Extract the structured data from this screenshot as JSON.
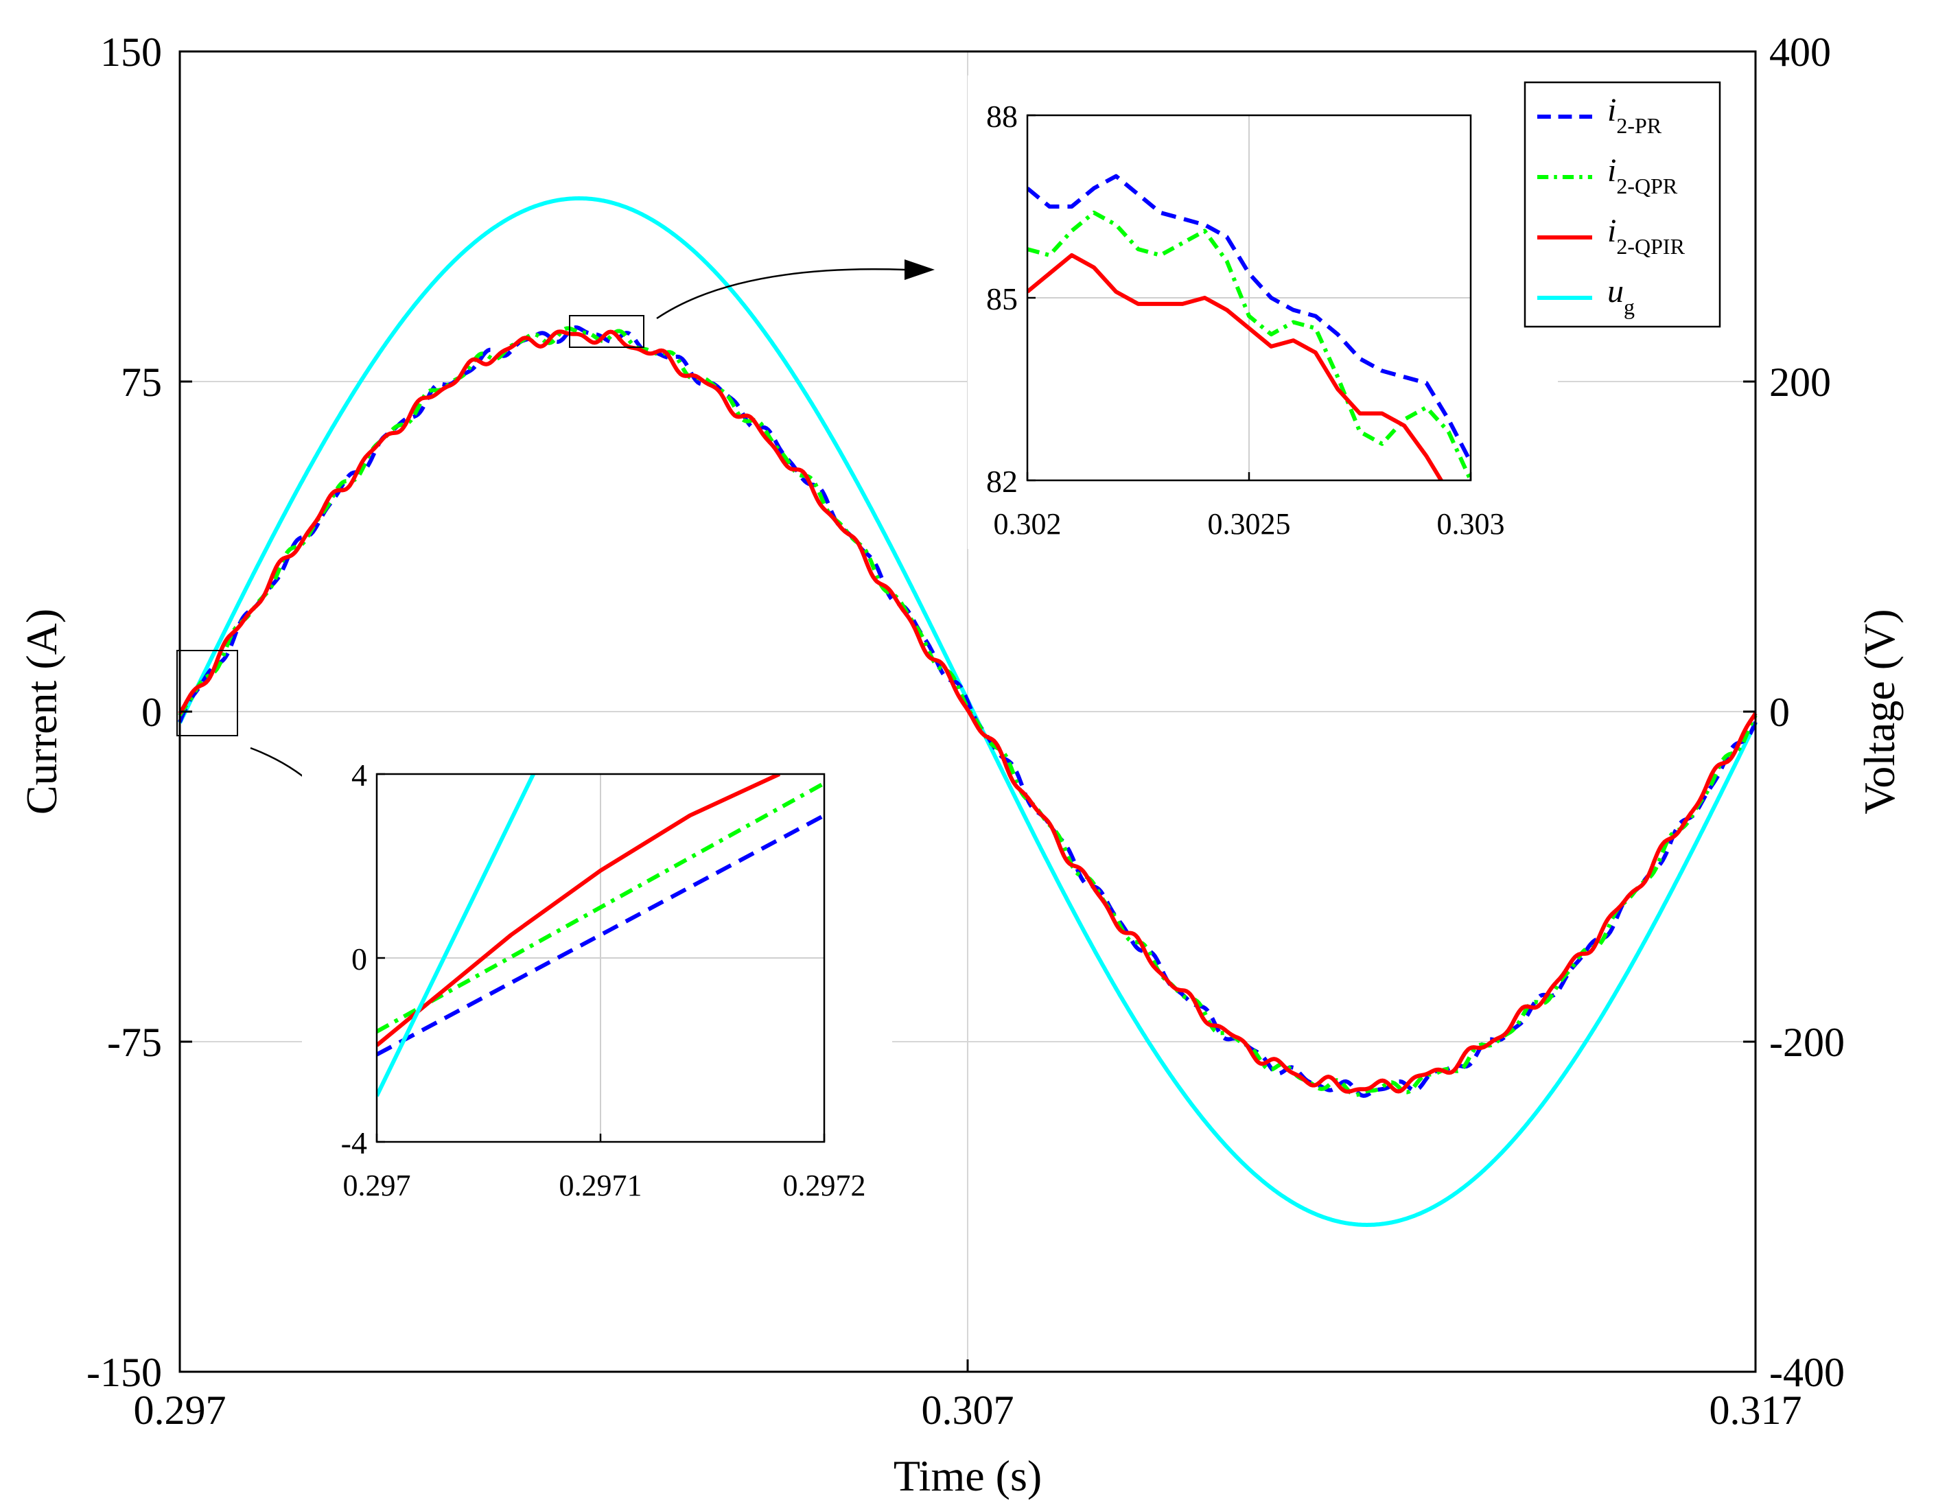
{
  "chart_data": {
    "type": "line",
    "xlabel": "Time (s)",
    "ylabel_left": "Current (A)",
    "ylabel_right": "Voltage (V)",
    "xlim": [
      0.297,
      0.317
    ],
    "ylim_left": [
      -150,
      150
    ],
    "ylim_right": [
      -400,
      400
    ],
    "x_ticks": [
      "0.297",
      "0.307",
      "0.317"
    ],
    "y_ticks_left": [
      "-150",
      "-75",
      "0",
      "75",
      "150"
    ],
    "y_ticks_right": [
      "-400",
      "-200",
      "0",
      "200",
      "400"
    ],
    "grid": true,
    "legend_position": "top-right",
    "frequency_hz": 50,
    "series": [
      {
        "name": "i2-PR",
        "legend_main": "i",
        "legend_sub": "2-PR",
        "axis": "left",
        "amplitude": 86,
        "zero_crossing": 0.29706,
        "color": "#0000ff",
        "style": "dashed"
      },
      {
        "name": "i2-QPR",
        "legend_main": "i",
        "legend_sub": "2-QPR",
        "axis": "left",
        "amplitude": 86,
        "zero_crossing": 0.29705,
        "color": "#00ff00",
        "style": "dash-dot"
      },
      {
        "name": "i2-QPIR",
        "legend_main": "i",
        "legend_sub": "2-QPIR",
        "axis": "left",
        "amplitude": 85.5,
        "zero_crossing": 0.29703,
        "color": "#ff0000",
        "style": "solid"
      },
      {
        "name": "ug",
        "legend_main": "u",
        "legend_sub": "g",
        "axis": "right",
        "amplitude": 311,
        "zero_crossing": 0.29707,
        "color": "#00ffff",
        "style": "solid"
      }
    ],
    "insets": [
      {
        "id": "peak",
        "xlim": [
          0.302,
          0.303
        ],
        "ylim": [
          82,
          88
        ],
        "x_ticks": [
          "0.302",
          "0.3025",
          "0.303"
        ],
        "y_ticks": [
          "82",
          "85",
          "88"
        ],
        "series": [
          {
            "name": "i2-PR",
            "x": [
              0.302,
              0.30205,
              0.3021,
              0.30215,
              0.3022,
              0.30225,
              0.3023,
              0.30235,
              0.3024,
              0.30245,
              0.3025,
              0.30255,
              0.3026,
              0.30265,
              0.3027,
              0.30275,
              0.3028,
              0.30285,
              0.3029,
              0.30295,
              0.303
            ],
            "y": [
              86.8,
              86.5,
              86.5,
              86.8,
              87.0,
              86.7,
              86.4,
              86.3,
              86.2,
              86.0,
              85.4,
              85.0,
              84.8,
              84.7,
              84.4,
              84.0,
              83.8,
              83.7,
              83.6,
              83.0,
              82.3
            ]
          },
          {
            "name": "i2-QPR",
            "x": [
              0.302,
              0.30205,
              0.3021,
              0.30215,
              0.3022,
              0.30225,
              0.3023,
              0.30235,
              0.3024,
              0.30245,
              0.3025,
              0.30255,
              0.3026,
              0.30265,
              0.3027,
              0.30275,
              0.3028,
              0.30285,
              0.3029,
              0.30295,
              0.303
            ],
            "y": [
              85.8,
              85.7,
              86.1,
              86.4,
              86.2,
              85.8,
              85.7,
              85.9,
              86.1,
              85.6,
              84.7,
              84.4,
              84.6,
              84.5,
              83.7,
              82.8,
              82.6,
              83.0,
              83.2,
              82.8,
              82.0
            ]
          },
          {
            "name": "i2-QPIR",
            "x": [
              0.302,
              0.30205,
              0.3021,
              0.30215,
              0.3022,
              0.30225,
              0.3023,
              0.30235,
              0.3024,
              0.30245,
              0.3025,
              0.30255,
              0.3026,
              0.30265,
              0.3027,
              0.30275,
              0.3028,
              0.30285,
              0.3029,
              0.30295,
              0.303
            ],
            "y": [
              85.1,
              85.4,
              85.7,
              85.5,
              85.1,
              84.9,
              84.9,
              84.9,
              85.0,
              84.8,
              84.5,
              84.2,
              84.3,
              84.1,
              83.5,
              83.1,
              83.1,
              82.9,
              82.4,
              81.8,
              81.2
            ]
          }
        ]
      },
      {
        "id": "zero_crossing",
        "xlim": [
          0.297,
          0.2972
        ],
        "ylim": [
          -4,
          4
        ],
        "x_ticks": [
          "0.297",
          "0.2971",
          "0.2972"
        ],
        "y_ticks": [
          "-4",
          "0",
          "4"
        ],
        "series": [
          {
            "name": "i2-PR",
            "x": [
              0.297,
              0.2972
            ],
            "y": [
              -2.1,
              3.1
            ]
          },
          {
            "name": "i2-QPR",
            "x": [
              0.297,
              0.2972
            ],
            "y": [
              -1.6,
              3.8
            ]
          },
          {
            "name": "i2-QPIR",
            "x": [
              0.297,
              0.29703,
              0.29706,
              0.2971,
              0.29714,
              0.29718
            ],
            "y": [
              -1.9,
              -0.7,
              0.5,
              1.9,
              3.1,
              4.0
            ]
          },
          {
            "name": "ug",
            "x": [
              0.297,
              0.29707
            ],
            "y": [
              -3.0,
              4.0
            ]
          }
        ]
      }
    ]
  }
}
